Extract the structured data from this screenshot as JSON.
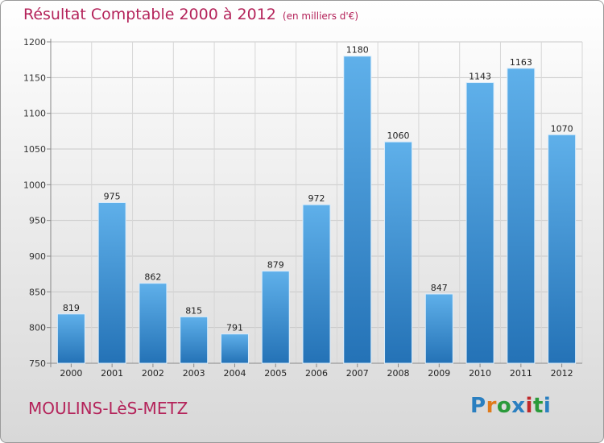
{
  "title": "Résultat Comptable 2000 à 2012",
  "subtitle": "(en milliers d'€)",
  "location": "MOULINS-LèS-METZ",
  "brand": {
    "text": "Proxiti",
    "letter_colors": [
      "#2a7fc0",
      "#e07a1a",
      "#2a9a3a",
      "#2a7fc0",
      "#c0282a",
      "#2a9a3a",
      "#2a7fc0"
    ]
  },
  "colors": {
    "bar_top": "#5fb0ea",
    "bar_bottom": "#2472b6",
    "title": "#b4235a"
  },
  "chart_data": {
    "type": "bar",
    "categories": [
      "2000",
      "2001",
      "2002",
      "2003",
      "2004",
      "2005",
      "2006",
      "2007",
      "2008",
      "2009",
      "2010",
      "2011",
      "2012"
    ],
    "values": [
      819,
      975,
      862,
      815,
      791,
      879,
      972,
      1180,
      1060,
      847,
      1143,
      1163,
      1070
    ],
    "title": "Résultat Comptable 2000 à 2012",
    "ylim": [
      750,
      1200
    ],
    "yticks": [
      750,
      800,
      850,
      900,
      950,
      1000,
      1050,
      1100,
      1150,
      1200
    ],
    "grid": true
  }
}
